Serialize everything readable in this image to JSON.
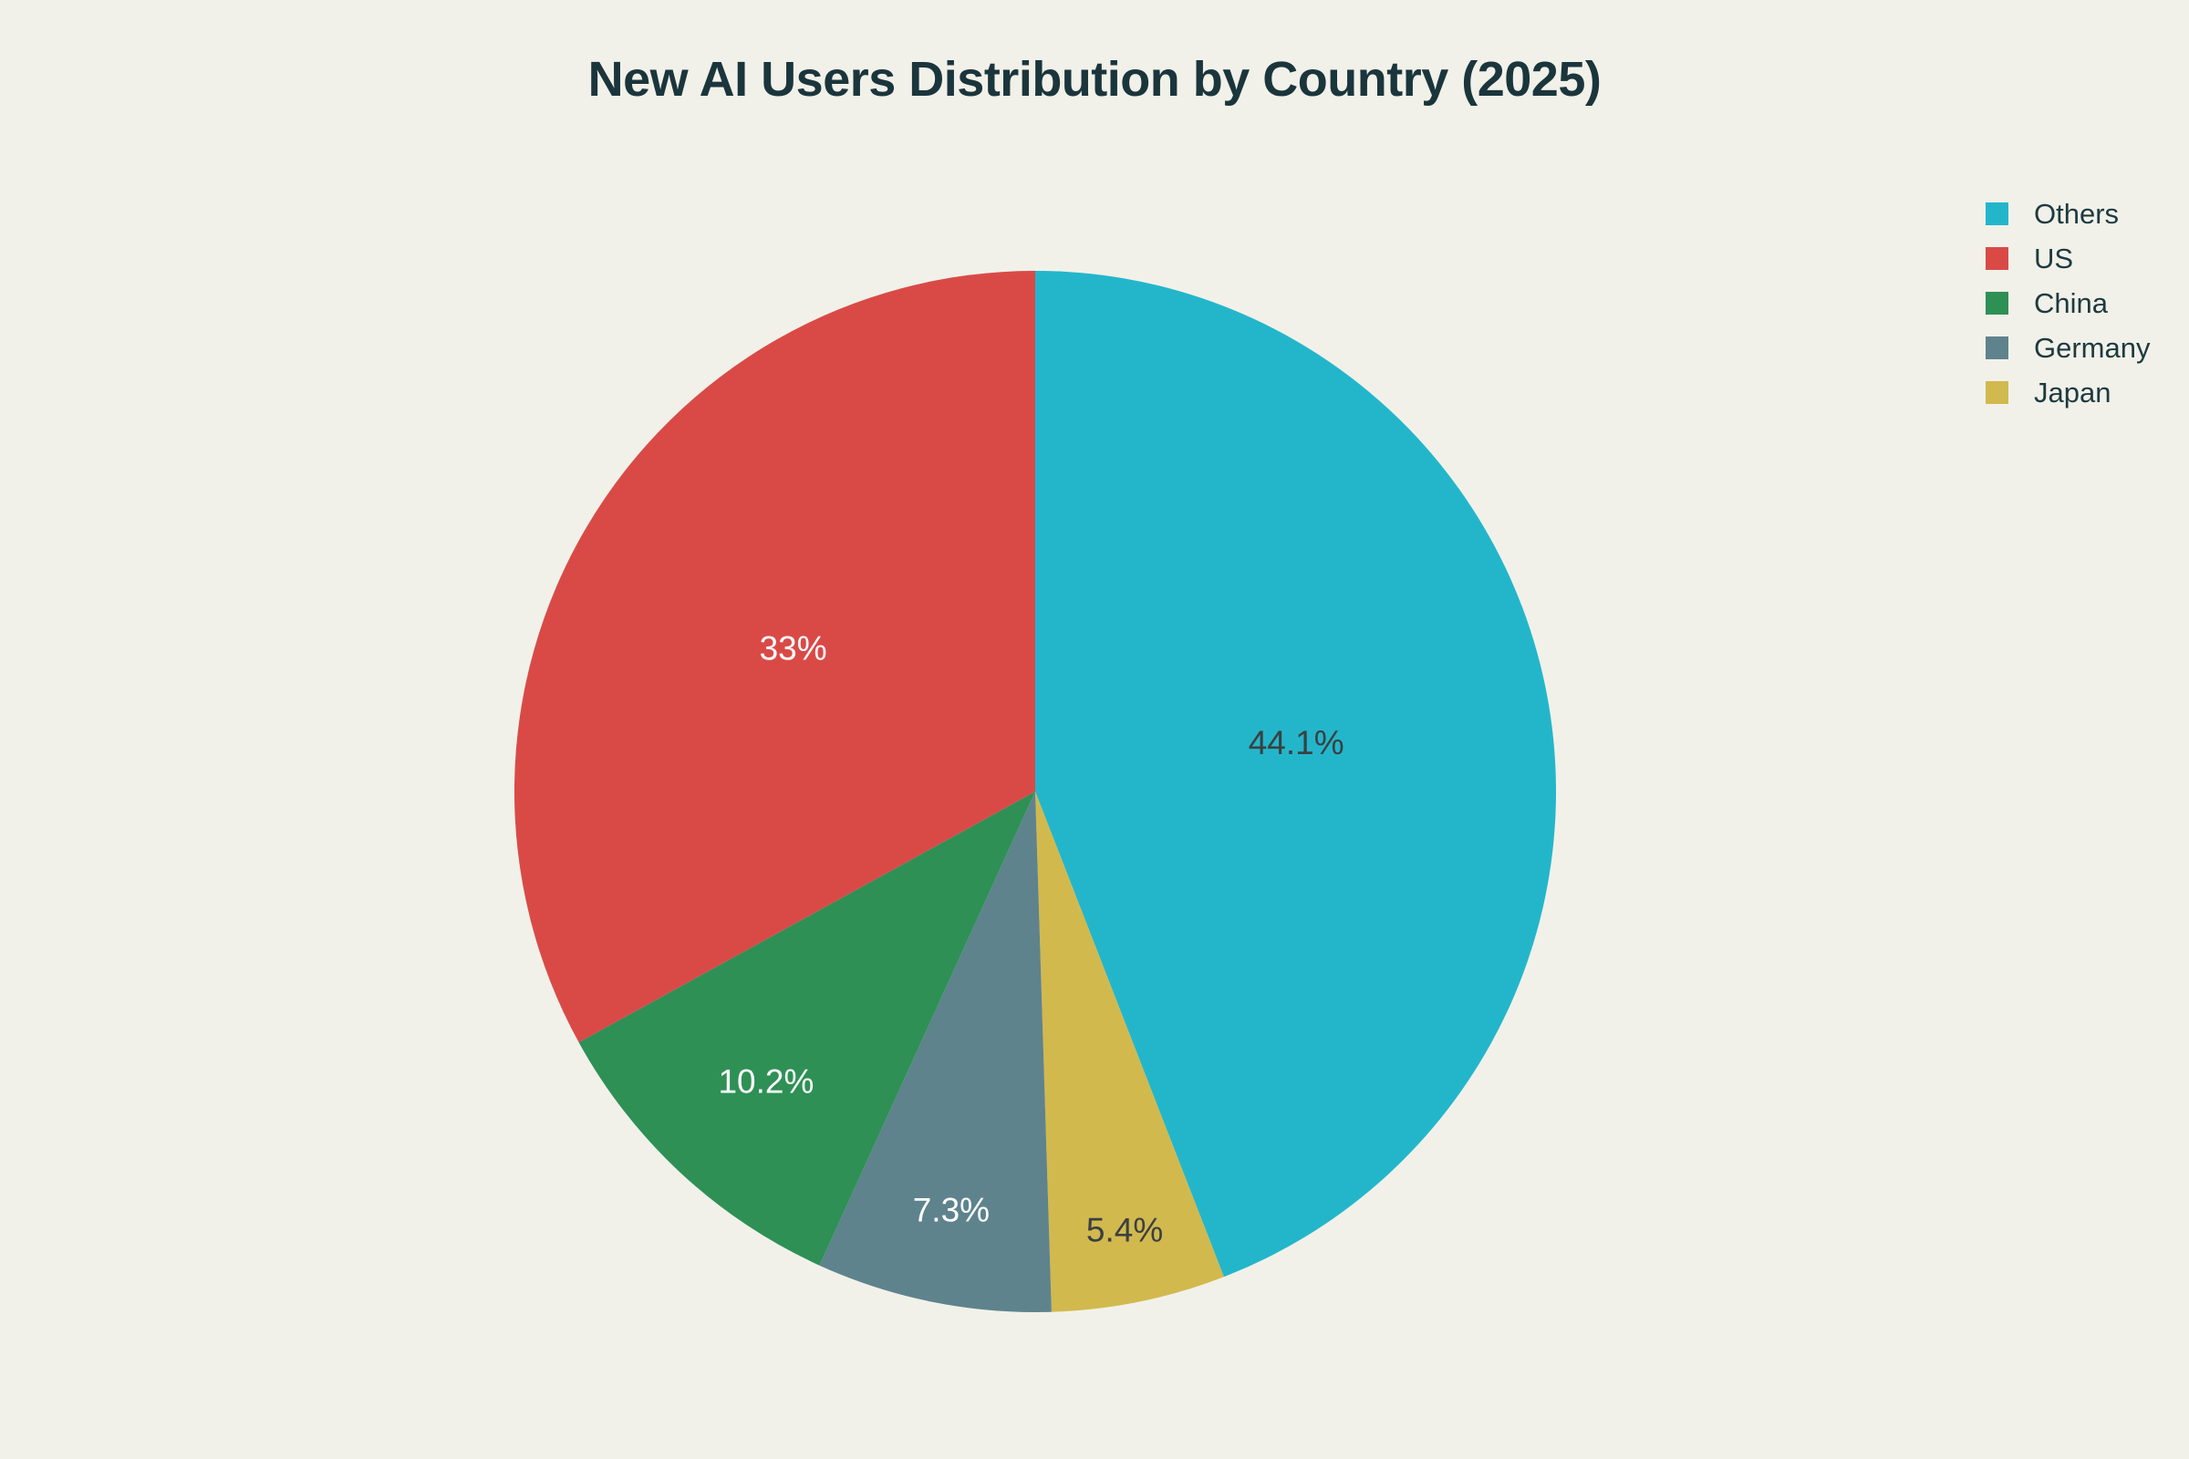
{
  "page": {
    "background_color": "#F1F1E9",
    "title_color": "#1B353C",
    "legend_text_color": "#1D3A40"
  },
  "chart_data": {
    "type": "pie",
    "title": "New AI Users Distribution by Country (2025)",
    "legend_position": "right",
    "start_angle_deg": 0,
    "slices": [
      {
        "label": "Others",
        "value": 44.1,
        "display": "44.1%",
        "color": "#23B6CB",
        "label_color": "#3A4042",
        "label_r": 0.51
      },
      {
        "label": "US",
        "value": 33,
        "display": "33%",
        "color": "#D94A47",
        "label_color": "#FFFFFF",
        "label_r": 0.54
      },
      {
        "label": "China",
        "value": 10.2,
        "display": "10.2%",
        "color": "#2E9055",
        "label_color": "#FFFFFF",
        "label_r": 0.76
      },
      {
        "label": "Germany",
        "value": 7.3,
        "display": "7.3%",
        "color": "#5E838D",
        "label_color": "#FFFFFF",
        "label_r": 0.82
      },
      {
        "label": "Japan",
        "value": 5.4,
        "display": "5.4%",
        "color": "#D1B94E",
        "label_color": "#3A4042",
        "label_r": 0.86
      }
    ],
    "draw_order_clockwise": [
      "Others",
      "Japan",
      "Germany",
      "China",
      "US"
    ]
  }
}
